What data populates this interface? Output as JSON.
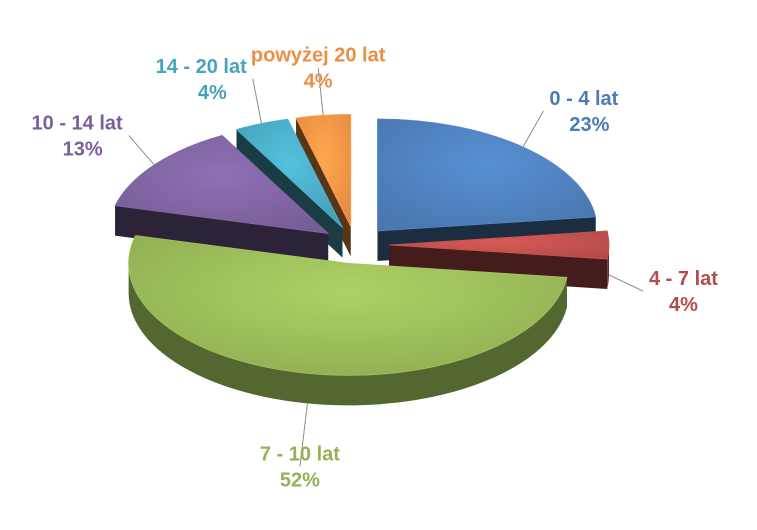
{
  "chart_data": {
    "type": "pie",
    "style": "3d-exploded",
    "title": "",
    "slices": [
      {
        "label": "0 - 4 lat",
        "value": 23,
        "value_label": "23%",
        "color": "#4F81BD"
      },
      {
        "label": "4 - 7 lat",
        "value": 4,
        "value_label": "4%",
        "color": "#C0504D"
      },
      {
        "label": "7 - 10 lat",
        "value": 52,
        "value_label": "52%",
        "color": "#9BBB59"
      },
      {
        "label": "10 - 14 lat",
        "value": 13,
        "value_label": "13%",
        "color": "#8064A2"
      },
      {
        "label": "14 - 20 lat",
        "value": 4,
        "value_label": "4%",
        "color": "#4BACC6"
      },
      {
        "label": "powyżej 20 lat",
        "value": 4,
        "value_label": "4%",
        "color": "#F79646"
      }
    ],
    "legend": "none",
    "data_labels": "outside with leader lines"
  }
}
